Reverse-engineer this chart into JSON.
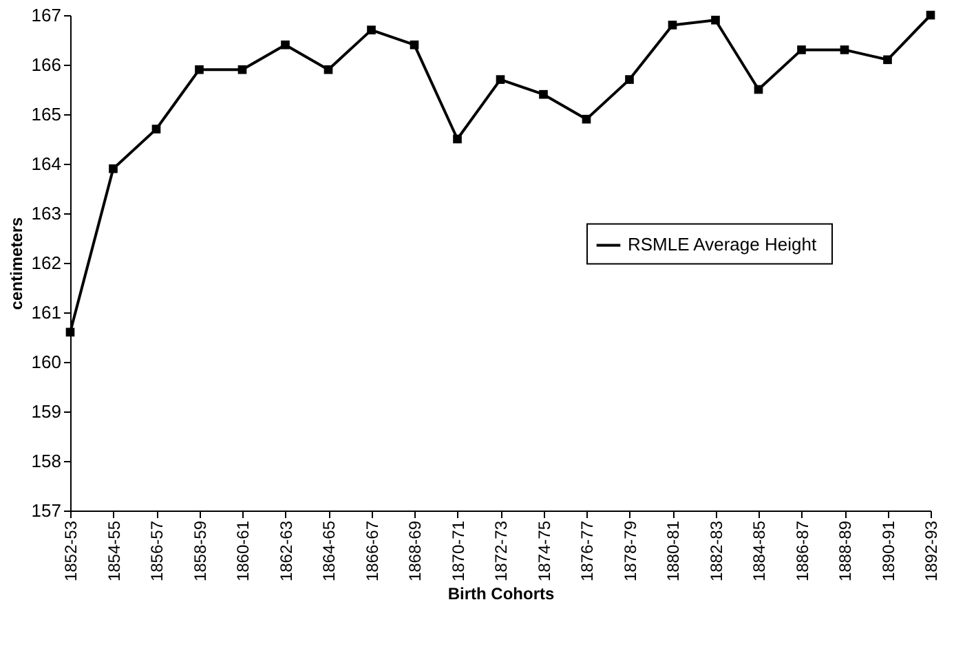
{
  "chart_data": {
    "type": "line",
    "xlabel": "Birth Cohorts",
    "ylabel": "centimeters",
    "categories": [
      "1852-53",
      "1854-55",
      "1856-57",
      "1858-59",
      "1860-61",
      "1862-63",
      "1864-65",
      "1866-67",
      "1868-69",
      "1870-71",
      "1872-73",
      "1874-75",
      "1876-77",
      "1878-79",
      "1880-81",
      "1882-83",
      "1884-85",
      "1886-87",
      "1888-89",
      "1890-91",
      "1892-93"
    ],
    "series": [
      {
        "name": "RSMLE  Average Height",
        "color": "#000000",
        "values": [
          160.6,
          163.9,
          164.7,
          165.9,
          165.9,
          166.4,
          165.9,
          166.7,
          166.4,
          164.5,
          165.7,
          165.4,
          164.9,
          165.7,
          166.8,
          166.9,
          165.5,
          166.3,
          166.3,
          166.1,
          167.0
        ]
      }
    ],
    "ylim": [
      157,
      167
    ],
    "yticks": [
      157,
      158,
      159,
      160,
      161,
      162,
      163,
      164,
      165,
      166,
      167
    ],
    "grid": false,
    "legend": "right",
    "marker": "square",
    "line_style": "solid"
  }
}
